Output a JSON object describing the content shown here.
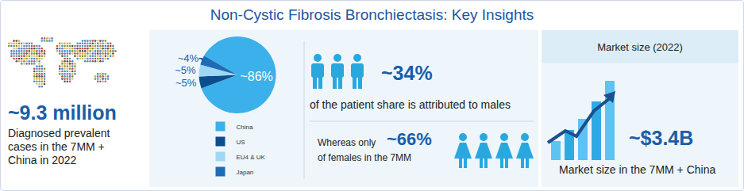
{
  "title": "Non-Cystic Fibrosis Bronchiectasis: Key Insights",
  "prevalence": {
    "value_label": "~9.3 million",
    "text": "Diagnosed prevalent cases in the 7MM + China in 2022"
  },
  "chart_data": {
    "type": "pie",
    "categories": [
      "China",
      "US",
      "EU4 & UK",
      "Japan"
    ],
    "values": [
      86,
      5,
      5,
      4
    ],
    "value_labels": [
      "~86%",
      "~5%",
      "~5%",
      "~4%"
    ],
    "colors": [
      "#3cb0ea",
      "#0c4e8d",
      "#9ed8f4",
      "#1f6cb6"
    ],
    "legend": "bottom",
    "data_labels": true
  },
  "males": {
    "value_label": "~34%",
    "text": "of the patient share is attributed to males"
  },
  "females": {
    "prefix": "Whereas only",
    "value_label": "~66%",
    "text": "of females in the 7MM"
  },
  "market": {
    "header": "Market size (2022)",
    "value_label": "~$3.4B",
    "text": "Market size in the 7MM + China"
  }
}
